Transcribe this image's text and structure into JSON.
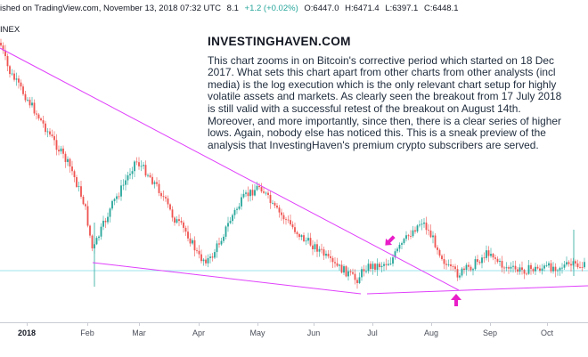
{
  "header": {
    "source": "ished on TradingView.com, November 13, 2018 07:32 UTC",
    "ohlc_prefix": "8.1",
    "change": "+1.2 (+0.02%)",
    "open": "O:6447.0",
    "high": "H:6471.4",
    "low": "L:6397.1",
    "close": "C:6448.1"
  },
  "symbol": "INEX",
  "annotation": {
    "title": "INVESTINGHAVEN.COM",
    "body": "This chart zooms in on Bitcoin's corrective period which started on 18 Dec 2017. What sets this chart apart from other charts from other analysts (incl media) is the log execution which is the only relevant chart setup for highly volatile assets and markets. As clearly seen the breakout from 17 July 2018 is still valid with a successful retest of the breakout on August 14th. Moreover, and more importantly, since then, there is a clear series of higher lows. Again, nobody else has noticed this. This is a sneak preview of the analysis that InvestingHaven's premium crypto subscribers are served."
  },
  "x_axis": [
    {
      "label": "2018",
      "bold": true
    },
    {
      "label": "Feb"
    },
    {
      "label": "Mar"
    },
    {
      "label": "Apr"
    },
    {
      "label": "May"
    },
    {
      "label": "Jun"
    },
    {
      "label": "Jul"
    },
    {
      "label": "Aug"
    },
    {
      "label": "Sep"
    },
    {
      "label": "Oct"
    }
  ],
  "colors": {
    "up": "#26a69a",
    "down": "#ef5350",
    "trendline": "#e040fb",
    "arrow": "#e91ec8",
    "price_line": "#26c6da"
  },
  "icons": [
    "arrow-down-right-icon",
    "arrow-up-icon"
  ]
}
